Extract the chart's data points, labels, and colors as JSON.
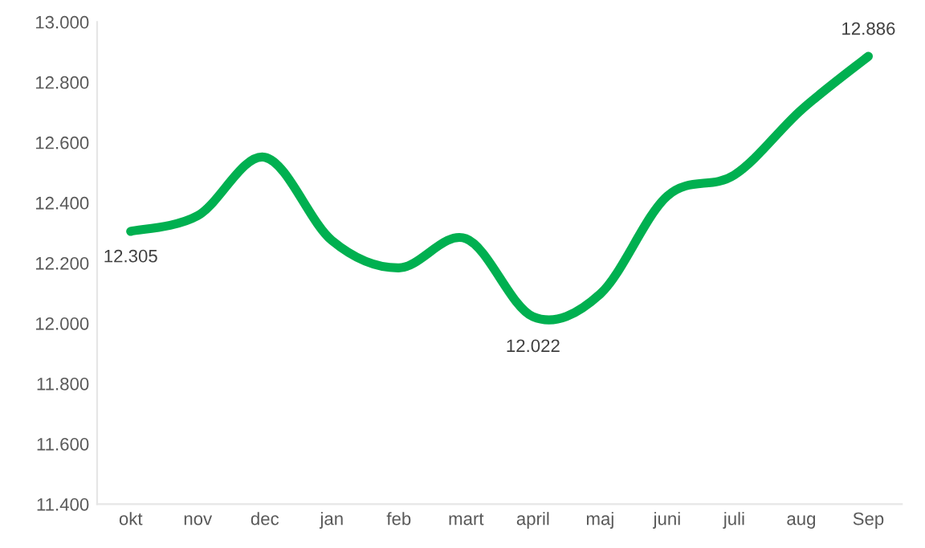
{
  "chart_data": {
    "type": "line",
    "categories": [
      "okt",
      "nov",
      "dec",
      "jan",
      "feb",
      "mart",
      "april",
      "maj",
      "juni",
      "juli",
      "aug",
      "Sep"
    ],
    "series": [
      {
        "color": "#00b050",
        "values": [
          12305,
          12357,
          12551,
          12275,
          12184,
          12281,
          12022,
          12097,
          12422,
          12492,
          12708,
          12886
        ],
        "value_labels": [
          "12.305",
          null,
          null,
          null,
          null,
          null,
          "12.022",
          null,
          null,
          null,
          null,
          "12.886"
        ]
      }
    ],
    "ylim": [
      11400,
      13000
    ],
    "yticks": [
      {
        "value": 11400,
        "label": "11.400"
      },
      {
        "value": 11600,
        "label": "11.600"
      },
      {
        "value": 11800,
        "label": "11.800"
      },
      {
        "value": 12000,
        "label": "12.000"
      },
      {
        "value": 12200,
        "label": "12.200"
      },
      {
        "value": 12400,
        "label": "12.400"
      },
      {
        "value": 12600,
        "label": "12.600"
      },
      {
        "value": 12800,
        "label": "12.800"
      },
      {
        "value": 13000,
        "label": "13.000"
      }
    ],
    "grid": false,
    "legend": false,
    "marker": "none",
    "line_style": "solid"
  }
}
